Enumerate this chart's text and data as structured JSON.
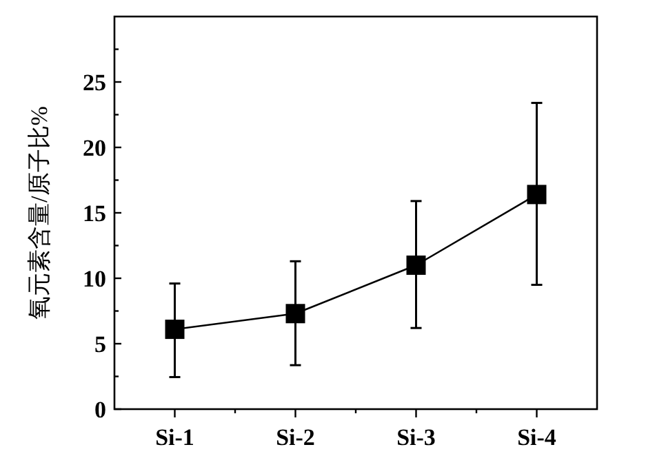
{
  "chart_data": {
    "type": "line",
    "ylabel": "氧元素含量/原子比%",
    "categories": [
      "Si-1",
      "Si-2",
      "Si-3",
      "Si-4"
    ],
    "series": [
      {
        "color": "#000000",
        "values": [
          6.1,
          7.3,
          11.0,
          16.4
        ],
        "errors": [
          [
            2.45,
            9.6
          ],
          [
            3.36,
            11.3
          ],
          [
            6.2,
            15.9
          ],
          [
            9.5,
            23.4
          ]
        ]
      }
    ],
    "ylim": [
      0,
      30
    ],
    "yticks": [
      0,
      {
        "value": 2.5,
        "label": null
      },
      5,
      {
        "value": 7.5,
        "label": null
      },
      10,
      {
        "value": 12.5,
        "label": null
      },
      15,
      {
        "value": 17.5,
        "label": null
      },
      20,
      {
        "value": 22.5,
        "label": null
      },
      25,
      {
        "value": 27.5,
        "label": null
      }
    ],
    "marker": "square",
    "line_style": "solid",
    "grid": false
  }
}
